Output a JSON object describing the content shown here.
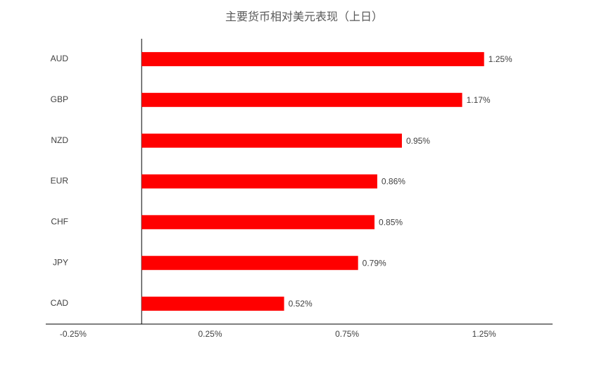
{
  "chart_data": {
    "type": "bar",
    "orientation": "horizontal",
    "title": "主要货币相对美元表现（上日）",
    "categories": [
      "AUD",
      "GBP",
      "NZD",
      "EUR",
      "CHF",
      "JPY",
      "CAD"
    ],
    "values": [
      1.25,
      1.17,
      0.95,
      0.86,
      0.85,
      0.79,
      0.52
    ],
    "value_labels": [
      "1.25%",
      "1.17%",
      "0.95%",
      "0.86%",
      "0.85%",
      "0.79%",
      "0.52%"
    ],
    "color": "#ff0000",
    "xlim": [
      -0.35,
      1.5
    ],
    "xticks": [
      {
        "value": -0.25,
        "label": "-0.25%"
      },
      {
        "value": 0.25,
        "label": "0.25%"
      },
      {
        "value": 0.75,
        "label": "0.75%"
      },
      {
        "value": 1.25,
        "label": "1.25%"
      }
    ],
    "grid": false
  }
}
